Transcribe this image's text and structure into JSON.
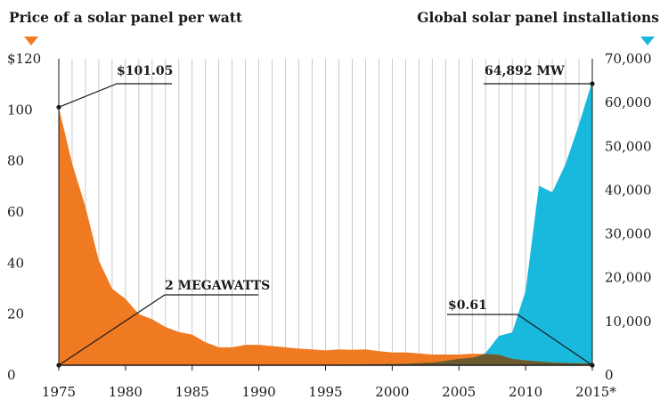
{
  "chart_data": {
    "type": "area",
    "left_title": "Price of a solar panel per watt",
    "right_title": "Global solar panel installations",
    "colors": {
      "price": "#f07a22",
      "installations": "#19b8dd",
      "overlap": "#6b5a2e",
      "grid": "#bdbdbd",
      "text": "#1a1a1a"
    },
    "x_ticks": [
      "1975",
      "1980",
      "1985",
      "1990",
      "1995",
      "2000",
      "2005",
      "2010",
      "2015*"
    ],
    "xlim": [
      1975,
      2015
    ],
    "y_left": {
      "lim": [
        0,
        120
      ],
      "ticks": [
        "$120",
        "100",
        "80",
        "60",
        "40",
        "20",
        "0"
      ]
    },
    "y_right": {
      "lim": [
        0,
        70000
      ],
      "ticks": [
        "70,000",
        "60,000",
        "50,000",
        "40,000",
        "30,000",
        "20,000",
        "10,000",
        "0"
      ]
    },
    "series": [
      {
        "name": "Price of a solar panel per watt",
        "axis": "left",
        "x": [
          1975,
          1976,
          1977,
          1978,
          1979,
          1980,
          1981,
          1982,
          1983,
          1984,
          1985,
          1986,
          1987,
          1988,
          1989,
          1990,
          1991,
          1992,
          1993,
          1994,
          1995,
          1996,
          1997,
          1998,
          1999,
          2000,
          2001,
          2002,
          2003,
          2004,
          2005,
          2006,
          2007,
          2008,
          2009,
          2010,
          2011,
          2012,
          2013,
          2014,
          2015
        ],
        "values": [
          101.05,
          79,
          62,
          41,
          30,
          26,
          20,
          18,
          15,
          13,
          12,
          9,
          7,
          7,
          8,
          8,
          7.5,
          7,
          6.5,
          6.2,
          5.8,
          6.2,
          6,
          6.2,
          5.5,
          5,
          5,
          4.6,
          4.2,
          4.2,
          4.2,
          4.5,
          4.4,
          4.1,
          2.5,
          1.9,
          1.5,
          1.1,
          0.9,
          0.8,
          0.61
        ]
      },
      {
        "name": "Global solar panel installations",
        "axis": "right",
        "x": [
          1975,
          1980,
          1985,
          1990,
          1995,
          2000,
          2001,
          2002,
          2003,
          2004,
          2005,
          2006,
          2007,
          2008,
          2009,
          2010,
          2011,
          2012,
          2013,
          2014,
          2015
        ],
        "values": [
          2,
          6,
          22,
          46,
          78,
          280,
          330,
          480,
          600,
          1000,
          1450,
          1700,
          2800,
          6700,
          7500,
          17000,
          41000,
          39500,
          46000,
          55000,
          64892
        ]
      }
    ],
    "annotations": {
      "price_start": "$101.05",
      "installs_start": "2 MEGAWATTS",
      "price_end": "$0.61",
      "installs_end": "64,892 MW"
    }
  }
}
